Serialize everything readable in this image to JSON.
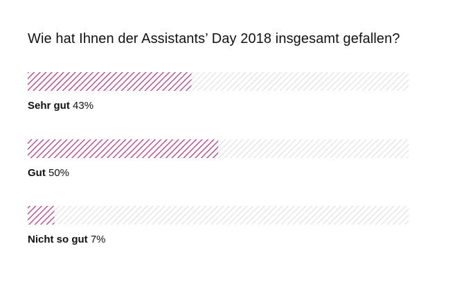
{
  "chart_data": {
    "type": "bar",
    "orientation": "horizontal",
    "title": "Wie hat Ihnen der Assistants’ Day 2018 insgesamt gefallen?",
    "categories": [
      "Sehr gut",
      "Gut",
      "Nicht so gut"
    ],
    "values": [
      43,
      50,
      7
    ],
    "value_labels": [
      "43%",
      "50%",
      "7%"
    ],
    "xlim": [
      0,
      100
    ],
    "grid": false,
    "legend": "none",
    "colors": {
      "fill": "#b5398a",
      "track": "#d9d9d9"
    }
  }
}
